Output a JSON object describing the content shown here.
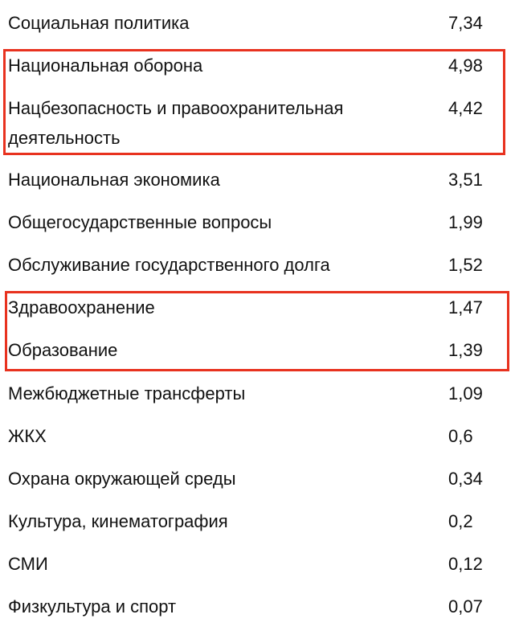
{
  "rows": [
    {
      "label": "Социальная политика",
      "value": "7,34"
    },
    {
      "label": "Национальная оборона",
      "value": "4,98"
    },
    {
      "label": "Нацбезопасность и правоохранительная деятельность",
      "value": "4,42"
    },
    {
      "label": "Национальная экономика",
      "value": "3,51"
    },
    {
      "label": "Общегосударственные вопросы",
      "value": "1,99"
    },
    {
      "label": "Обслуживание государственного долга",
      "value": "1,52"
    },
    {
      "label": "Здравоохранение",
      "value": "1,47"
    },
    {
      "label": "Образование",
      "value": "1,39"
    },
    {
      "label": "Межбюджетные трансферты",
      "value": "1,09"
    },
    {
      "label": "ЖКХ",
      "value": "0,6"
    },
    {
      "label": "Охрана окружающей среды",
      "value": "0,34"
    },
    {
      "label": "Культура, кинематография",
      "value": "0,2"
    },
    {
      "label": "СМИ",
      "value": "0,12"
    },
    {
      "label": "Физкультура и спорт",
      "value": "0,07"
    }
  ],
  "highlight_color": "#e8321f"
}
